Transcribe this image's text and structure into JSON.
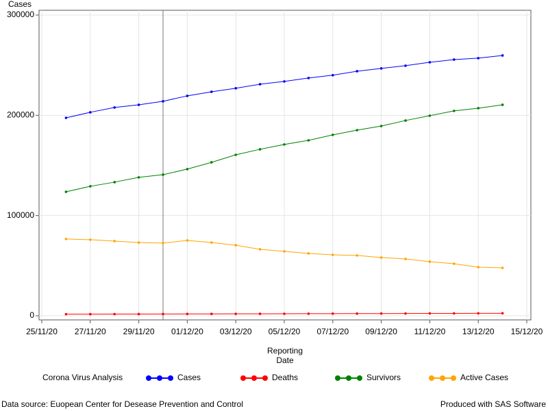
{
  "chart_data": {
    "type": "line",
    "y_label": "Cases",
    "x_label": "Reporting Date",
    "legend_title": "Corona Virus Analysis",
    "footnote_left": "Data source: Euopean Center for Desease Prevention and Control",
    "footnote_right": "Produced with SAS Software",
    "x": [
      "26/11/20",
      "27/11/20",
      "28/11/20",
      "29/11/20",
      "30/11/20",
      "01/12/20",
      "02/12/20",
      "03/12/20",
      "04/12/20",
      "05/12/20",
      "06/12/20",
      "07/12/20",
      "08/12/20",
      "09/12/20",
      "10/12/20",
      "11/12/20",
      "12/12/20",
      "13/12/20",
      "14/12/20"
    ],
    "xlim": [
      "25/11/20",
      "15/12/20"
    ],
    "xticks": [
      "25/11/20",
      "27/11/20",
      "29/11/20",
      "01/12/20",
      "03/12/20",
      "05/12/20",
      "07/12/20",
      "09/12/20",
      "11/12/20",
      "13/12/20",
      "15/12/20"
    ],
    "ylim": [
      0,
      300000
    ],
    "yticks": [
      0,
      100000,
      200000,
      300000
    ],
    "grid": true,
    "reference_line": "30/11/20",
    "series": [
      {
        "name": "Cases",
        "color": "#0000ff",
        "values": [
          197500,
          203000,
          207800,
          210500,
          214000,
          219400,
          223500,
          227000,
          231000,
          233800,
          237200,
          240000,
          244000,
          246800,
          249500,
          252900,
          255600,
          257000,
          259700
        ]
      },
      {
        "name": "Deaths",
        "color": "#ff0000",
        "values": [
          1600,
          1650,
          1700,
          1750,
          1800,
          1850,
          1900,
          1950,
          2000,
          2050,
          2100,
          2150,
          2200,
          2250,
          2300,
          2350,
          2400,
          2450,
          2500
        ]
      },
      {
        "name": "Survivors",
        "color": "#008000",
        "values": [
          123700,
          129200,
          133300,
          138100,
          140800,
          146300,
          153100,
          160600,
          166100,
          170900,
          175000,
          180500,
          185200,
          189300,
          194800,
          199600,
          204400,
          207100,
          210500
        ]
      },
      {
        "name": "Active Cases",
        "color": "#ffa500",
        "values": [
          76600,
          75900,
          74500,
          73100,
          72500,
          75200,
          73100,
          70400,
          66300,
          64300,
          62200,
          60800,
          60200,
          58100,
          56700,
          54000,
          51900,
          48500,
          47800
        ]
      }
    ]
  }
}
